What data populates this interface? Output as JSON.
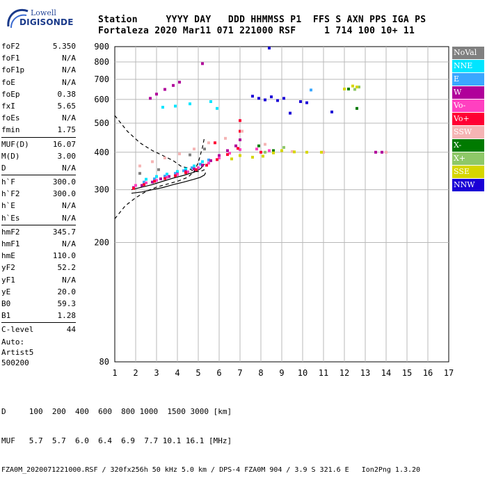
{
  "logo": {
    "line1": "Lowell",
    "line2": "DIGISONDE"
  },
  "header": {
    "line1": "Station     YYYY DAY   DDD HHMMSS P1  FFS S AXN PPS IGA PS",
    "line2": "Fortaleza 2020 Mar11 071 221000 RSF     1 714 100 10+ 11"
  },
  "params": [
    {
      "name": "foF2",
      "value": "5.350"
    },
    {
      "name": "foF1",
      "value": "N/A"
    },
    {
      "name": "foF1p",
      "value": "N/A"
    },
    {
      "name": "foE",
      "value": "N/A"
    },
    {
      "name": "foEp",
      "value": "0.38"
    },
    {
      "name": "fxI",
      "value": "5.65"
    },
    {
      "name": "foEs",
      "value": "N/A"
    },
    {
      "name": "fmin",
      "value": "1.75"
    },
    {
      "sep": true
    },
    {
      "name": "MUF(D)",
      "value": "16.07"
    },
    {
      "name": "M(D)",
      "value": "3.00"
    },
    {
      "name": "D",
      "value": "N/A"
    },
    {
      "sep": true
    },
    {
      "name": "h`F",
      "value": "300.0"
    },
    {
      "name": "h`F2",
      "value": "300.0"
    },
    {
      "name": "h`E",
      "value": "N/A"
    },
    {
      "name": "h`Es",
      "value": "N/A"
    },
    {
      "sep": true
    },
    {
      "name": "hmF2",
      "value": "345.7"
    },
    {
      "name": "hmF1",
      "value": "N/A"
    },
    {
      "name": "hmE",
      "value": "110.0"
    },
    {
      "name": "yF2",
      "value": "52.2"
    },
    {
      "name": "yF1",
      "value": "N/A"
    },
    {
      "name": "yE",
      "value": "20.0"
    },
    {
      "name": "B0",
      "value": "59.3"
    },
    {
      "name": "B1",
      "value": "1.28"
    },
    {
      "sep": true
    },
    {
      "name": "C-level",
      "value": "44"
    }
  ],
  "auto": {
    "line1": "Auto:",
    "line2": "Artist5",
    "line3": "500200"
  },
  "bottom": {
    "line1": "D     100  200  400  600  800 1000  1500 3000 [km]",
    "line2": "MUF   5.7  5.7  6.0  6.4  6.9  7.7 10.1 16.1 [MHz]",
    "line3": "FZA0M_2020071221000.RSF / 320fx256h 50 kHz 5.0 km / DPS-4 FZA0M 904 / 3.9 S 321.6 E   Ion2Png 1.3.20"
  },
  "legend": [
    {
      "label": "NoVal",
      "color": "#808080"
    },
    {
      "label": "NNE",
      "color": "#00e5ff"
    },
    {
      "label": "E",
      "color": "#3aa7ff"
    },
    {
      "label": "W",
      "color": "#b0009a"
    },
    {
      "label": "Vo-",
      "color": "#ff40c0"
    },
    {
      "label": "Vo+",
      "color": "#ff0033"
    },
    {
      "label": "SSW",
      "color": "#f5b4b4"
    },
    {
      "label": "X-",
      "color": "#007a00"
    },
    {
      "label": "X+",
      "color": "#8ec868"
    },
    {
      "label": "SSE",
      "color": "#d6d600"
    },
    {
      "label": "NNW",
      "color": "#1a00d6"
    }
  ],
  "chart_data": {
    "type": "scatter",
    "title": "",
    "xlabel": "",
    "ylabel": "",
    "xlim": [
      1,
      17
    ],
    "ylim": [
      80,
      900
    ],
    "x_ticks": [
      1,
      2,
      3,
      4,
      5,
      6,
      7,
      8,
      9,
      10,
      11,
      12,
      13,
      14,
      15,
      16,
      17
    ],
    "y_ticks": [
      80,
      200,
      300,
      400,
      500,
      600,
      700,
      800,
      900
    ],
    "y_scale": "log",
    "grid": true,
    "legend_position": "right",
    "series": [
      {
        "name": "NoVal",
        "points": [
          [
            2.2,
            340
          ],
          [
            3.1,
            350
          ],
          [
            4.6,
            392
          ],
          [
            5.3,
            410
          ]
        ]
      },
      {
        "name": "NNE",
        "points": [
          [
            2.5,
            325
          ],
          [
            3.0,
            332
          ],
          [
            3.5,
            338
          ],
          [
            4.0,
            345
          ],
          [
            4.4,
            352
          ],
          [
            4.8,
            360
          ],
          [
            5.2,
            372
          ],
          [
            3.3,
            565
          ],
          [
            3.9,
            570
          ],
          [
            4.6,
            580
          ],
          [
            5.6,
            590
          ],
          [
            5.9,
            560
          ]
        ]
      },
      {
        "name": "E",
        "points": [
          [
            2.4,
            318
          ],
          [
            2.9,
            326
          ],
          [
            3.4,
            333
          ],
          [
            3.9,
            340
          ],
          [
            4.3,
            347
          ],
          [
            4.7,
            355
          ],
          [
            5.1,
            365
          ],
          [
            5.5,
            377
          ],
          [
            10.4,
            645
          ]
        ]
      },
      {
        "name": "W",
        "points": [
          [
            1.9,
            305
          ],
          [
            2.3,
            310
          ],
          [
            2.8,
            318
          ],
          [
            3.2,
            326
          ],
          [
            3.6,
            332
          ],
          [
            4.0,
            338
          ],
          [
            4.4,
            345
          ],
          [
            4.8,
            352
          ],
          [
            5.2,
            362
          ],
          [
            5.6,
            375
          ],
          [
            6.0,
            390
          ],
          [
            6.4,
            405
          ],
          [
            6.8,
            420
          ],
          [
            7.0,
            440
          ],
          [
            2.7,
            605
          ],
          [
            3.0,
            625
          ],
          [
            3.4,
            648
          ],
          [
            3.8,
            668
          ],
          [
            4.1,
            685
          ],
          [
            5.2,
            790
          ],
          [
            13.5,
            400
          ],
          [
            13.8,
            400
          ]
        ]
      },
      {
        "name": "Vo-",
        "points": [
          [
            2.0,
            310
          ],
          [
            2.5,
            316
          ],
          [
            3.0,
            322
          ],
          [
            3.5,
            330
          ],
          [
            4.0,
            337
          ],
          [
            4.5,
            344
          ],
          [
            5.0,
            355
          ],
          [
            5.5,
            368
          ],
          [
            6.0,
            383
          ],
          [
            6.5,
            397
          ],
          [
            7.0,
            408
          ],
          [
            7.8,
            410
          ],
          [
            8.4,
            405
          ]
        ]
      },
      {
        "name": "Vo+",
        "points": [
          [
            1.9,
            303
          ],
          [
            2.4,
            312
          ],
          [
            2.9,
            320
          ],
          [
            3.4,
            327
          ],
          [
            3.9,
            334
          ],
          [
            4.4,
            342
          ],
          [
            4.9,
            350
          ],
          [
            5.4,
            362
          ],
          [
            5.9,
            378
          ],
          [
            6.4,
            393
          ],
          [
            6.9,
            412
          ],
          [
            7.0,
            470
          ],
          [
            7.0,
            510
          ],
          [
            5.8,
            430
          ],
          [
            8.0,
            400
          ]
        ]
      },
      {
        "name": "SSW",
        "points": [
          [
            2.2,
            360
          ],
          [
            2.8,
            372
          ],
          [
            3.4,
            383
          ],
          [
            4.1,
            395
          ],
          [
            4.8,
            410
          ],
          [
            5.5,
            430
          ],
          [
            6.3,
            445
          ],
          [
            7.1,
            470
          ],
          [
            8.2,
            425
          ],
          [
            9.5,
            402
          ],
          [
            11.0,
            400
          ],
          [
            14.0,
            400
          ]
        ]
      },
      {
        "name": "X-",
        "points": [
          [
            7.9,
            420
          ],
          [
            8.6,
            405
          ],
          [
            12.2,
            650
          ],
          [
            12.6,
            560
          ]
        ]
      },
      {
        "name": "X+",
        "points": [
          [
            8.2,
            400
          ],
          [
            9.1,
            415
          ],
          [
            12.5,
            648
          ],
          [
            12.7,
            660
          ]
        ]
      },
      {
        "name": "SSE",
        "points": [
          [
            6.6,
            380
          ],
          [
            7.0,
            390
          ],
          [
            7.6,
            385
          ],
          [
            8.1,
            388
          ],
          [
            8.6,
            398
          ],
          [
            9.0,
            405
          ],
          [
            9.6,
            401
          ],
          [
            10.2,
            400
          ],
          [
            10.9,
            400
          ],
          [
            12.0,
            650
          ],
          [
            12.4,
            665
          ],
          [
            12.6,
            660
          ]
        ]
      },
      {
        "name": "NNW",
        "points": [
          [
            7.6,
            615
          ],
          [
            7.9,
            605
          ],
          [
            8.2,
            598
          ],
          [
            8.5,
            612
          ],
          [
            8.8,
            595
          ],
          [
            9.1,
            605
          ],
          [
            9.9,
            590
          ],
          [
            10.2,
            585
          ],
          [
            9.4,
            540
          ],
          [
            8.4,
            890
          ],
          [
            11.4,
            545
          ]
        ]
      }
    ],
    "dashed_curves": [
      {
        "points": [
          [
            1.0,
            530
          ],
          [
            1.6,
            470
          ],
          [
            2.2,
            430
          ],
          [
            2.8,
            405
          ],
          [
            3.3,
            390
          ],
          [
            3.8,
            375
          ],
          [
            4.2,
            358
          ],
          [
            4.5,
            355
          ],
          [
            4.8,
            345
          ],
          [
            5.1,
            345
          ],
          [
            5.3,
            350
          ]
        ]
      },
      {
        "points": [
          [
            1.0,
            240
          ],
          [
            1.5,
            265
          ],
          [
            2.0,
            282
          ],
          [
            2.5,
            296
          ],
          [
            3.0,
            306
          ],
          [
            3.5,
            313
          ],
          [
            4.0,
            320
          ],
          [
            4.5,
            330
          ],
          [
            4.8,
            345
          ],
          [
            5.0,
            370
          ],
          [
            5.2,
            415
          ],
          [
            5.3,
            450
          ]
        ]
      }
    ],
    "solid_curves": [
      {
        "points": [
          [
            1.8,
            292
          ],
          [
            2.3,
            295
          ],
          [
            2.8,
            300
          ],
          [
            3.3,
            305
          ],
          [
            3.8,
            312
          ],
          [
            4.3,
            318
          ],
          [
            4.8,
            325
          ],
          [
            5.1,
            330
          ],
          [
            5.3,
            336
          ],
          [
            5.35,
            342
          ]
        ]
      },
      {
        "points": [
          [
            1.8,
            300
          ],
          [
            2.3,
            306
          ],
          [
            2.8,
            312
          ],
          [
            3.3,
            320
          ],
          [
            3.8,
            328
          ],
          [
            4.3,
            335
          ],
          [
            4.8,
            343
          ],
          [
            5.1,
            352
          ],
          [
            5.3,
            365
          ]
        ]
      }
    ]
  }
}
